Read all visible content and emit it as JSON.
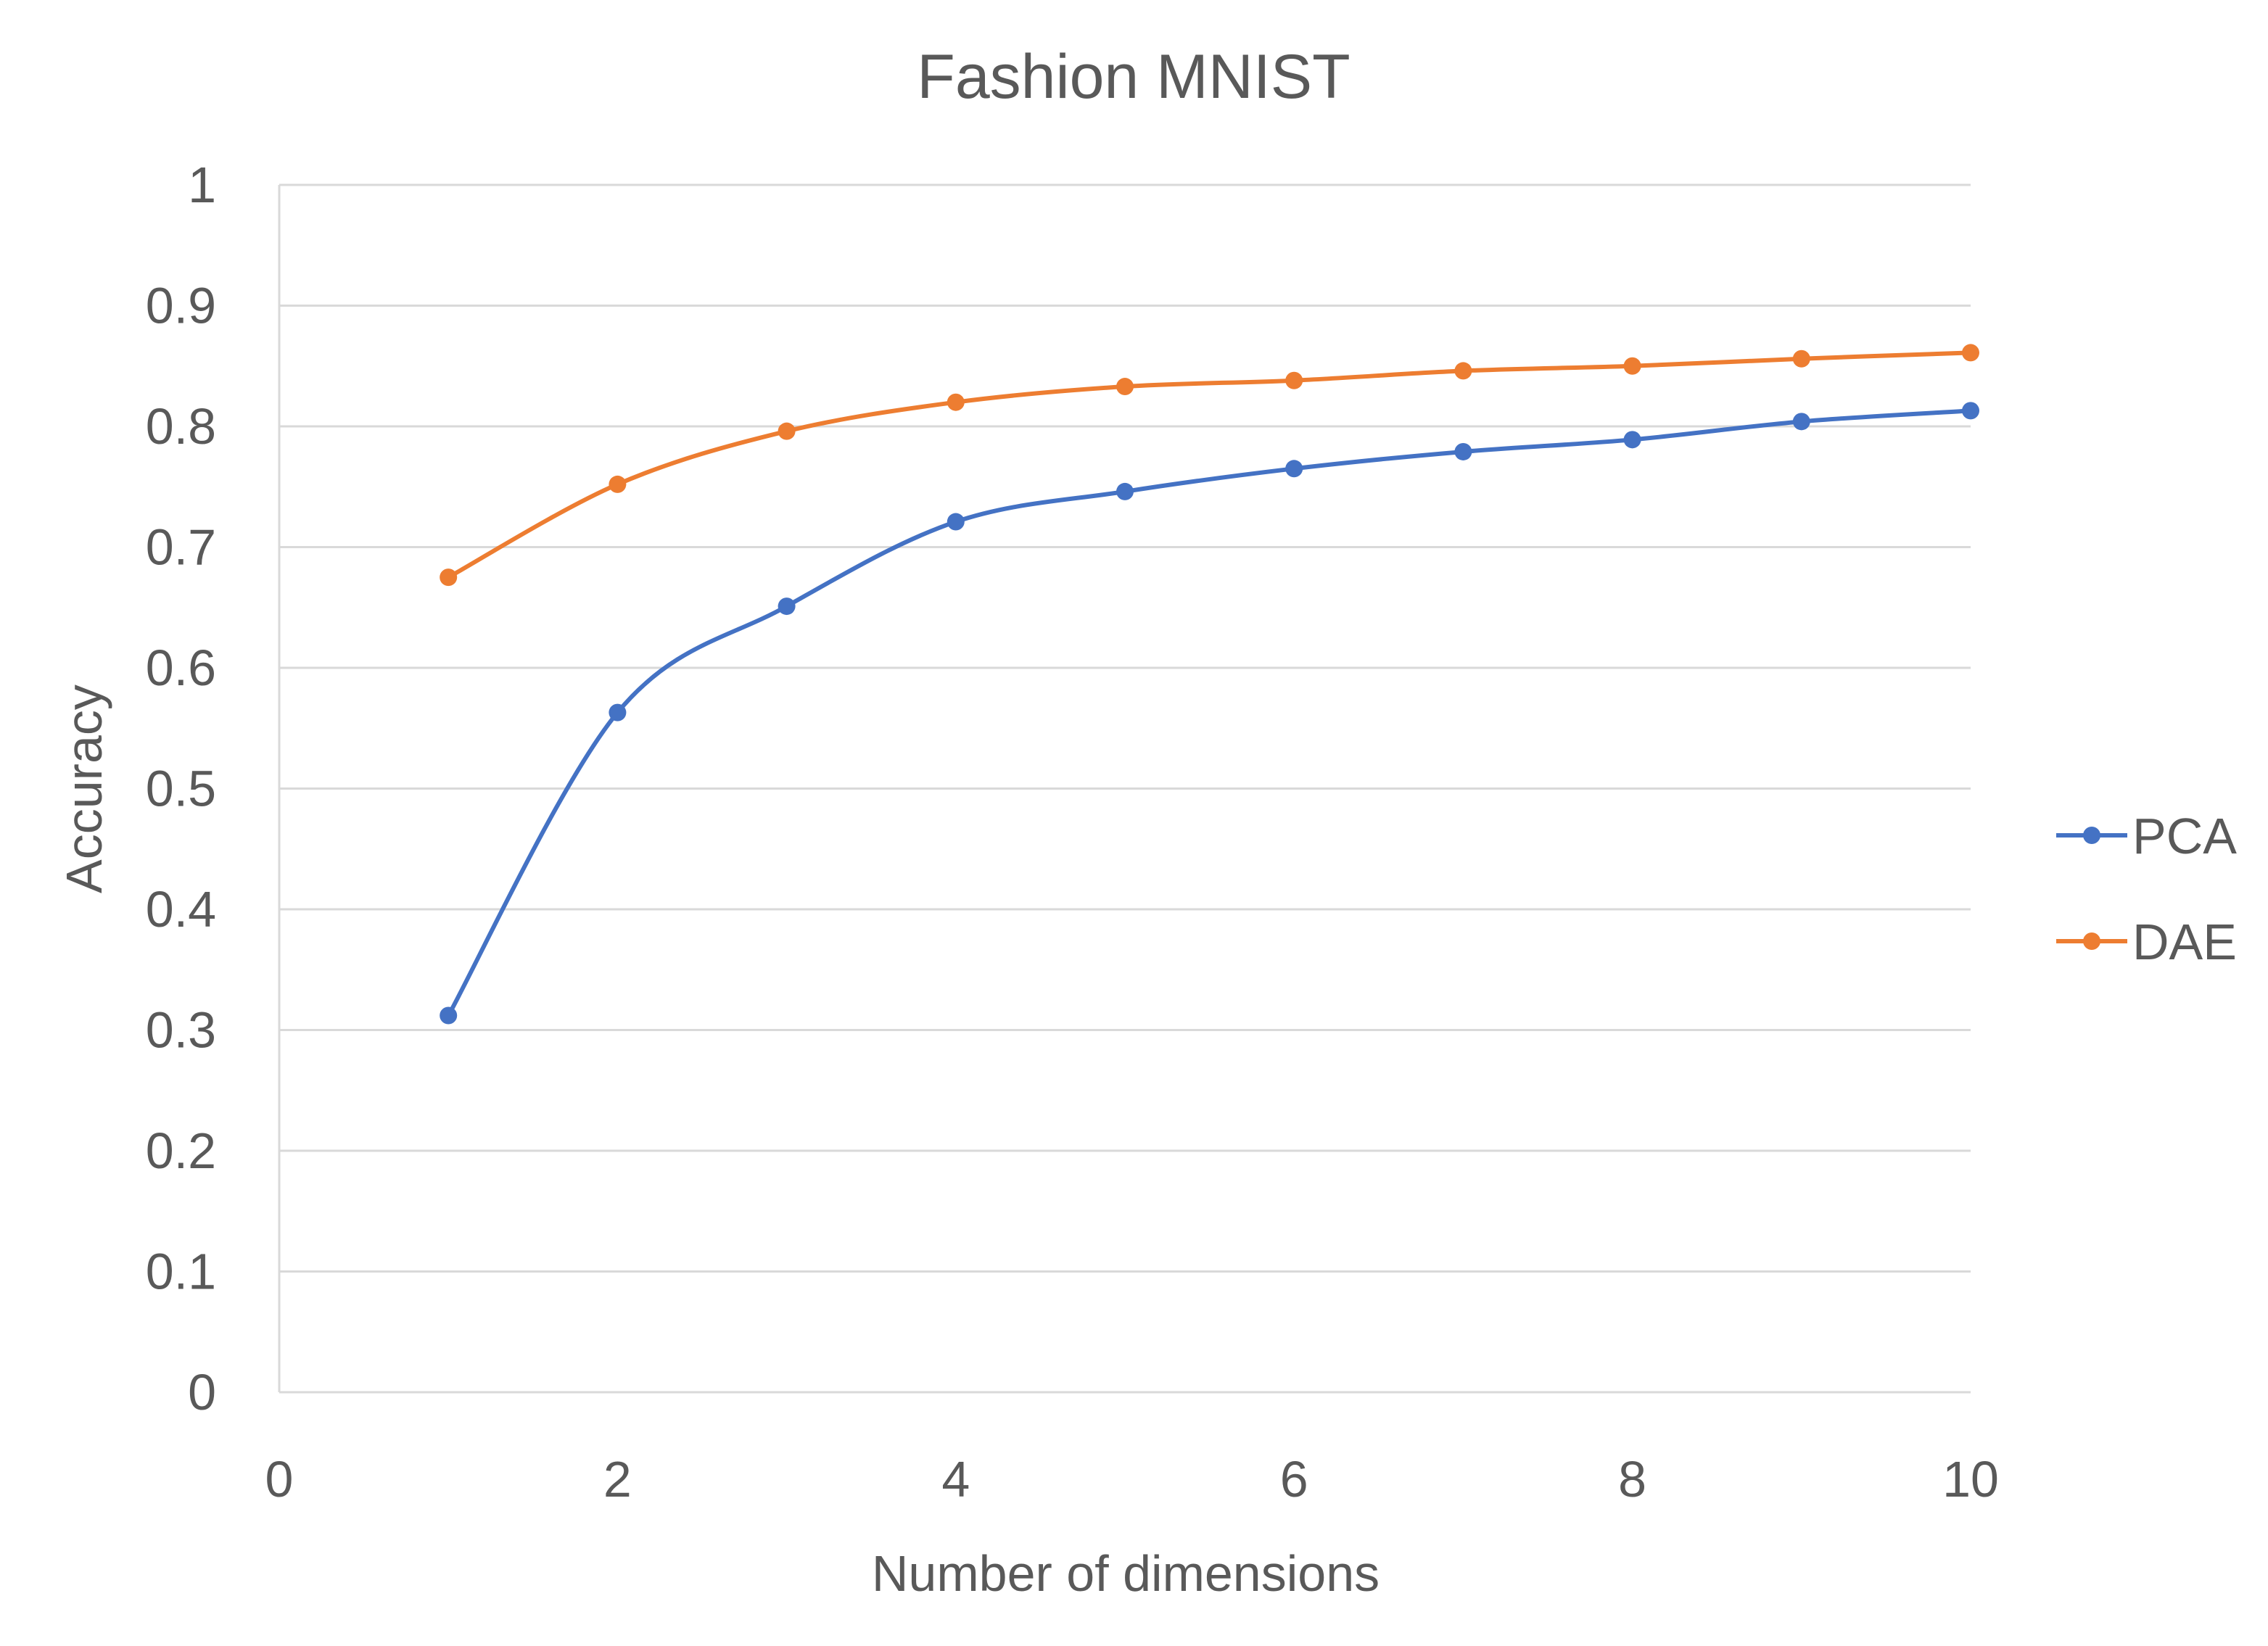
{
  "chart_data": {
    "type": "line",
    "title": "Fashion MNIST",
    "xlabel": "Number of dimensions",
    "ylabel": "Accuracy",
    "xlim": [
      0,
      10
    ],
    "ylim": [
      0,
      1
    ],
    "x_ticks": [
      "0",
      "2",
      "4",
      "6",
      "8",
      "10"
    ],
    "y_ticks": [
      "0",
      "0.1",
      "0.2",
      "0.3",
      "0.4",
      "0.5",
      "0.6",
      "0.7",
      "0.8",
      "0.9",
      "1"
    ],
    "grid": "horizontal",
    "legend_position": "right",
    "smoothed": true,
    "x": [
      1,
      2,
      3,
      4,
      5,
      6,
      7,
      8,
      9,
      10
    ],
    "series": [
      {
        "name": "PCA",
        "color": "#4472c4",
        "values": [
          0.312,
          0.563,
          0.651,
          0.721,
          0.746,
          0.765,
          0.779,
          0.789,
          0.804,
          0.813
        ]
      },
      {
        "name": "DAE",
        "color": "#ed7d31",
        "values": [
          0.675,
          0.752,
          0.796,
          0.82,
          0.833,
          0.838,
          0.846,
          0.85,
          0.856,
          0.861
        ]
      }
    ]
  }
}
